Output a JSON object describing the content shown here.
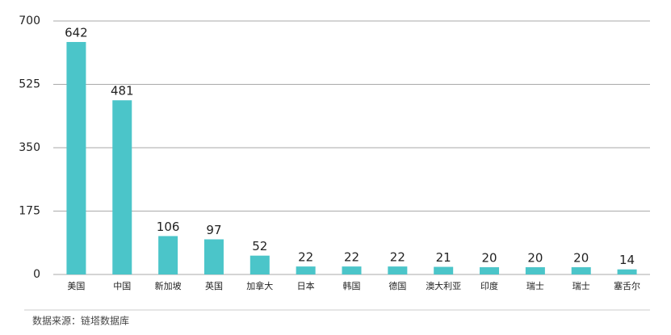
{
  "chart_data": {
    "type": "bar",
    "categories": [
      "美国",
      "中国",
      "新加坡",
      "英国",
      "加拿大",
      "日本",
      "韩国",
      "德国",
      "澳大利亚",
      "印度",
      "瑞士",
      "瑞士",
      "塞舌尔"
    ],
    "values": [
      642,
      481,
      106,
      97,
      52,
      22,
      22,
      22,
      21,
      20,
      20,
      20,
      14
    ],
    "color": "#4bc5c9",
    "ylim": [
      0,
      700
    ],
    "yticks": [
      0,
      175,
      350,
      525,
      700
    ],
    "grid": true,
    "source": "数据来源：链塔数据库"
  }
}
